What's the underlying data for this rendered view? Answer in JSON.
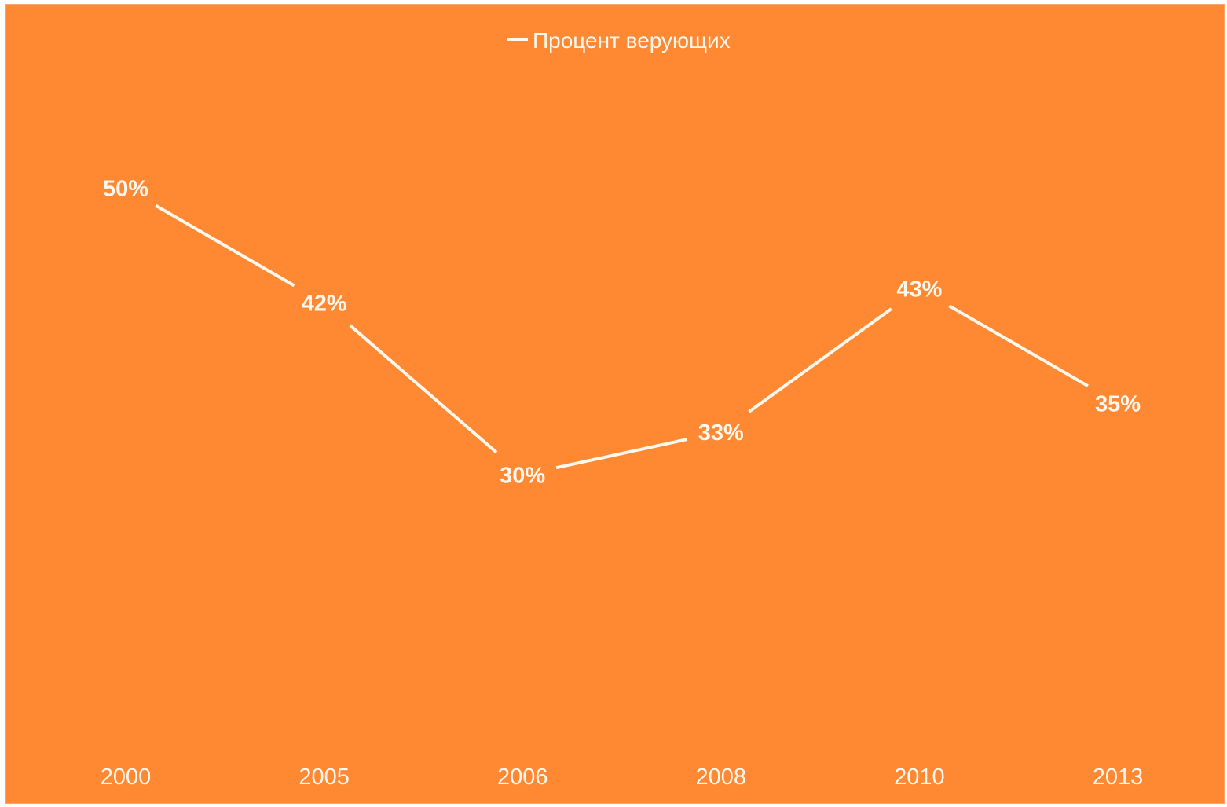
{
  "colors": {
    "background": "#FF8833",
    "line": "#FFF8EE",
    "text": "#FFF8EE"
  },
  "chart_data": {
    "type": "line",
    "title": "",
    "xlabel": "",
    "ylabel": "",
    "categories": [
      "2000",
      "2005",
      "2006",
      "2008",
      "2010",
      "2013"
    ],
    "series": [
      {
        "name": "Процент верующих",
        "values": [
          50,
          42,
          30,
          33,
          43,
          35
        ],
        "labels": [
          "50%",
          "42%",
          "30%",
          "33%",
          "43%",
          "35%"
        ]
      }
    ],
    "ylim": [
      0,
      100
    ],
    "grid": false,
    "legend": "top-center"
  }
}
